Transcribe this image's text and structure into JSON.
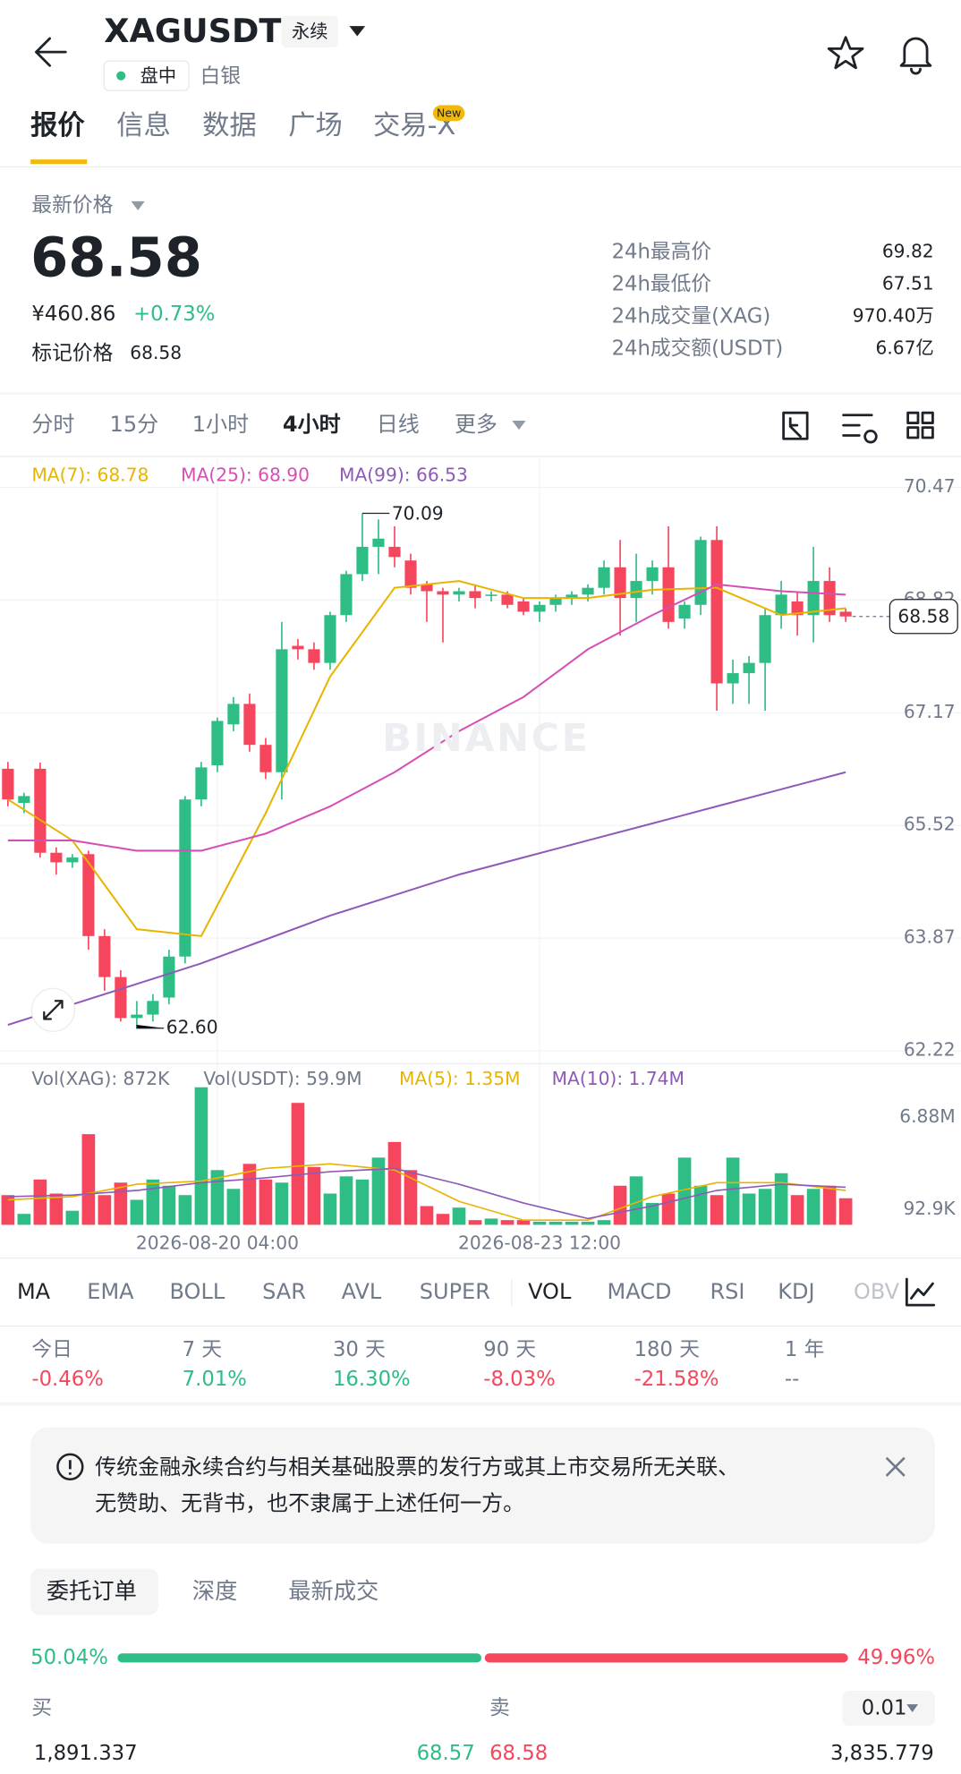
{
  "header": {
    "symbol": "XAGUSDT",
    "contract": "永续",
    "status": "盘中",
    "name": "白银"
  },
  "tabs": [
    "报价",
    "信息",
    "数据",
    "广场",
    "交易-X"
  ],
  "new_badge": "New",
  "price": {
    "label": "最新价格",
    "last": "68.58",
    "cny": "¥460.86",
    "change": "+0.73%",
    "mark_label": "标记价格",
    "mark": "68.58"
  },
  "stats": [
    {
      "label": "24h最高价",
      "value": "69.82"
    },
    {
      "label": "24h最低价",
      "value": "67.51"
    },
    {
      "label": "24h成交量(XAG)",
      "value": "970.40万"
    },
    {
      "label": "24h成交额(USDT)",
      "value": "6.67亿"
    }
  ],
  "intervals": [
    "分时",
    "15分",
    "1小时",
    "4小时",
    "日线",
    "更多"
  ],
  "chart_data": {
    "type": "candlestick",
    "up_color": "#2ebd85",
    "down_color": "#f6465d",
    "ylim": [
      62.04,
      70.9
    ],
    "yticks": [
      70.47,
      68.82,
      67.17,
      65.52,
      63.87,
      62.22
    ],
    "xlim": [
      -0.5,
      53.5
    ],
    "xticks": [
      {
        "value": 13,
        "label": "2026-08-20 04:00"
      },
      {
        "value": 33,
        "label": "2026-08-23 12:00"
      }
    ],
    "watermark": "BINANCE",
    "annotations": {
      "max": "70.09",
      "min": "62.60",
      "last": "68.58"
    },
    "candles": {
      "open": [
        66.35,
        65.85,
        66.35,
        65.12,
        64.98,
        65.1,
        63.9,
        63.3,
        62.7,
        62.75,
        63.0,
        63.6,
        65.9,
        66.4,
        67.0,
        67.3,
        66.7,
        66.3,
        68.15,
        68.1,
        67.9,
        68.6,
        69.2,
        69.6,
        69.6,
        69.4,
        69.05,
        68.95,
        68.9,
        68.95,
        68.88,
        68.9,
        68.8,
        68.65,
        68.75,
        68.85,
        68.9,
        69.0,
        69.3,
        68.85,
        69.1,
        69.3,
        68.55,
        68.75,
        69.7,
        67.6,
        67.75,
        67.9,
        68.6,
        68.8,
        68.6,
        69.1,
        68.65
      ],
      "high": [
        66.45,
        66.0,
        66.44,
        65.2,
        65.1,
        65.15,
        64.0,
        63.4,
        62.95,
        63.05,
        63.7,
        65.95,
        66.45,
        67.1,
        67.4,
        67.45,
        66.8,
        68.5,
        68.25,
        68.2,
        68.65,
        69.25,
        70.09,
        70.0,
        69.9,
        69.5,
        69.1,
        69.0,
        69.0,
        69.05,
        68.95,
        68.95,
        68.85,
        68.8,
        68.9,
        68.95,
        69.05,
        69.4,
        69.7,
        69.5,
        69.4,
        69.9,
        68.8,
        69.75,
        69.9,
        67.95,
        68.0,
        68.7,
        69.1,
        68.95,
        69.6,
        69.3,
        68.7
      ],
      "low": [
        65.8,
        65.7,
        65.05,
        64.8,
        64.9,
        63.7,
        63.1,
        62.65,
        62.6,
        62.65,
        62.9,
        63.5,
        65.8,
        66.3,
        66.9,
        66.6,
        66.2,
        65.9,
        67.95,
        67.8,
        67.8,
        68.5,
        69.1,
        69.2,
        69.3,
        68.9,
        68.5,
        68.2,
        68.8,
        68.7,
        68.8,
        68.7,
        68.6,
        68.5,
        68.65,
        68.75,
        68.8,
        68.9,
        68.3,
        68.5,
        68.9,
        68.4,
        68.4,
        68.6,
        67.2,
        67.3,
        67.3,
        67.2,
        68.4,
        68.3,
        68.2,
        68.5,
        68.5
      ],
      "close": [
        65.9,
        65.95,
        65.12,
        64.98,
        65.05,
        63.9,
        63.3,
        62.7,
        62.75,
        62.95,
        63.6,
        65.9,
        66.37,
        67.05,
        67.3,
        66.7,
        66.3,
        68.1,
        68.1,
        67.9,
        68.6,
        69.2,
        69.6,
        69.72,
        69.45,
        69.0,
        68.95,
        68.9,
        68.95,
        68.85,
        68.9,
        68.75,
        68.65,
        68.75,
        68.85,
        68.9,
        69.0,
        69.3,
        68.85,
        69.1,
        69.3,
        68.5,
        68.75,
        69.7,
        67.6,
        67.75,
        67.9,
        68.6,
        68.9,
        68.6,
        69.1,
        68.6,
        68.58
      ]
    },
    "ma": [
      {
        "name": "MA(7): 68.78",
        "color": "#e8b400",
        "x": [
          0,
          4,
          8,
          12,
          16,
          20,
          24,
          28,
          32,
          36,
          40,
          44,
          48,
          52
        ],
        "values": [
          65.9,
          65.3,
          64.0,
          63.9,
          65.7,
          67.7,
          69.0,
          69.1,
          68.85,
          68.85,
          68.97,
          69.0,
          68.6,
          68.7
        ]
      },
      {
        "name": "MA(25): 68.90",
        "color": "#d64fb5",
        "x": [
          0,
          4,
          8,
          12,
          16,
          20,
          24,
          28,
          32,
          36,
          40,
          44,
          48,
          52
        ],
        "values": [
          65.3,
          65.3,
          65.15,
          65.15,
          65.4,
          65.8,
          66.3,
          66.9,
          67.4,
          68.1,
          68.6,
          69.05,
          68.95,
          68.9
        ]
      },
      {
        "name": "MA(99): 66.53",
        "color": "#8e5ab8",
        "x": [
          0,
          4,
          8,
          12,
          16,
          20,
          24,
          28,
          32,
          36,
          40,
          44,
          48,
          52
        ],
        "values": [
          62.6,
          62.9,
          63.2,
          63.5,
          63.85,
          64.2,
          64.5,
          64.8,
          65.05,
          65.3,
          65.55,
          65.8,
          66.05,
          66.3
        ]
      }
    ],
    "volume": {
      "legend": [
        "Vol(XAG): 872K",
        "Vol(USDT): 59.9M"
      ],
      "ylim": [
        0,
        8.9
      ],
      "yticks": [
        {
          "value": 6.88,
          "label": "6.88M"
        },
        {
          "value": 0.0929,
          "label": "92.9K"
        }
      ],
      "values": [
        1.9,
        0.7,
        2.9,
        2.0,
        0.9,
        5.8,
        1.9,
        2.7,
        1.6,
        2.9,
        2.5,
        1.9,
        8.8,
        3.5,
        2.3,
        3.9,
        2.9,
        2.7,
        7.8,
        3.7,
        2.0,
        3.1,
        2.9,
        4.3,
        5.3,
        3.5,
        1.2,
        0.7,
        1.1,
        0.3,
        0.4,
        0.3,
        0.3,
        0.2,
        0.2,
        0.2,
        0.2,
        0.3,
        2.5,
        3.1,
        1.4,
        2.0,
        4.3,
        2.5,
        1.9,
        4.3,
        2.0,
        2.3,
        3.3,
        1.9,
        2.3,
        2.5,
        1.7
      ],
      "ma": [
        {
          "name": "MA(5): 1.35M",
          "color": "#e8b400",
          "x": [
            0,
            4,
            8,
            12,
            16,
            20,
            24,
            28,
            32,
            36,
            40,
            44,
            48,
            52
          ],
          "values": [
            1.6,
            1.8,
            2.6,
            2.8,
            3.6,
            3.9,
            3.5,
            1.5,
            0.3,
            0.3,
            1.8,
            2.7,
            2.7,
            2.2
          ]
        },
        {
          "name": "MA(10): 1.74M",
          "color": "#8e5ab8",
          "x": [
            0,
            4,
            8,
            12,
            16,
            20,
            24,
            28,
            32,
            36,
            40,
            44,
            48,
            52
          ],
          "values": [
            1.8,
            1.9,
            2.2,
            2.7,
            3.0,
            3.4,
            3.6,
            2.6,
            1.4,
            0.4,
            1.2,
            2.2,
            2.6,
            2.4
          ]
        }
      ]
    }
  },
  "indicators": [
    "MA",
    "EMA",
    "BOLL",
    "SAR",
    "AVL",
    "SUPER",
    "VOL",
    "MACD",
    "RSI",
    "KDJ",
    "OBV"
  ],
  "performance": [
    {
      "label": "今日",
      "value": "-0.46%",
      "color": "#f6465d"
    },
    {
      "label": "7 天",
      "value": "7.01%",
      "color": "#2ebd85"
    },
    {
      "label": "30 天",
      "value": "16.30%",
      "color": "#2ebd85"
    },
    {
      "label": "90 天",
      "value": "-8.03%",
      "color": "#f6465d"
    },
    {
      "label": "180 天",
      "value": "-21.58%",
      "color": "#f6465d"
    },
    {
      "label": "1 年",
      "value": "--",
      "color": "#707a8a"
    }
  ],
  "notice": [
    "传统金融永续合约与相关基础股票的发行方或其上市交易所无关联、",
    "无赞助、无背书，也不隶属于上述任何一方。"
  ],
  "order_tabs": [
    "委托订单",
    "深度",
    "最新成交"
  ],
  "order_book": {
    "buy_ratio": {
      "value": 50.04,
      "label": "50.04%"
    },
    "sell_ratio": {
      "value": 49.96,
      "label": "49.96%"
    },
    "buy_label": "买",
    "sell_label": "卖",
    "precision": "0.01",
    "rows": [
      [
        "1,891.337",
        "68.57",
        "68.58",
        "3,835.779"
      ]
    ]
  }
}
